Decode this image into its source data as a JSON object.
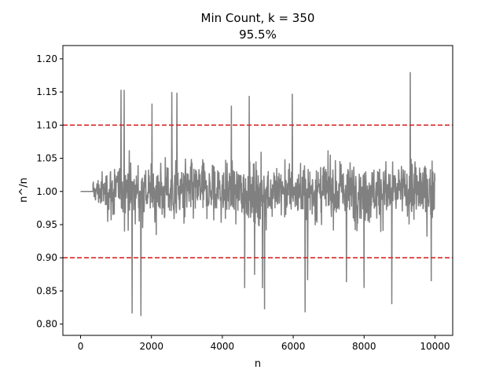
{
  "chart_data": {
    "type": "line",
    "title": "Min Count, k = 350",
    "subtitle": "95.5%",
    "xlabel": "n",
    "ylabel": "n^/n",
    "xlim": [
      -500,
      10500
    ],
    "ylim": [
      0.783,
      1.22
    ],
    "x_ticks": [
      0,
      2000,
      4000,
      6000,
      8000,
      10000
    ],
    "x_tick_labels": [
      "0",
      "2000",
      "4000",
      "6000",
      "8000",
      "10000"
    ],
    "y_ticks": [
      0.8,
      0.85,
      0.9,
      0.95,
      1.0,
      1.05,
      1.1,
      1.15,
      1.2
    ],
    "y_tick_labels": [
      "0.80",
      "0.85",
      "0.90",
      "0.95",
      "1.00",
      "1.05",
      "1.10",
      "1.15",
      "1.20"
    ],
    "grid": false,
    "reference_lines": [
      {
        "y": 1.1,
        "style": "dashed",
        "color": "#d62728"
      },
      {
        "y": 0.9,
        "style": "dashed",
        "color": "#d62728"
      }
    ],
    "series": [
      {
        "color": "#808080",
        "flat_until": 350,
        "flat_value": 1.0,
        "x_end": 10000,
        "max_value": 1.195,
        "min_value": 0.802
      }
    ]
  }
}
